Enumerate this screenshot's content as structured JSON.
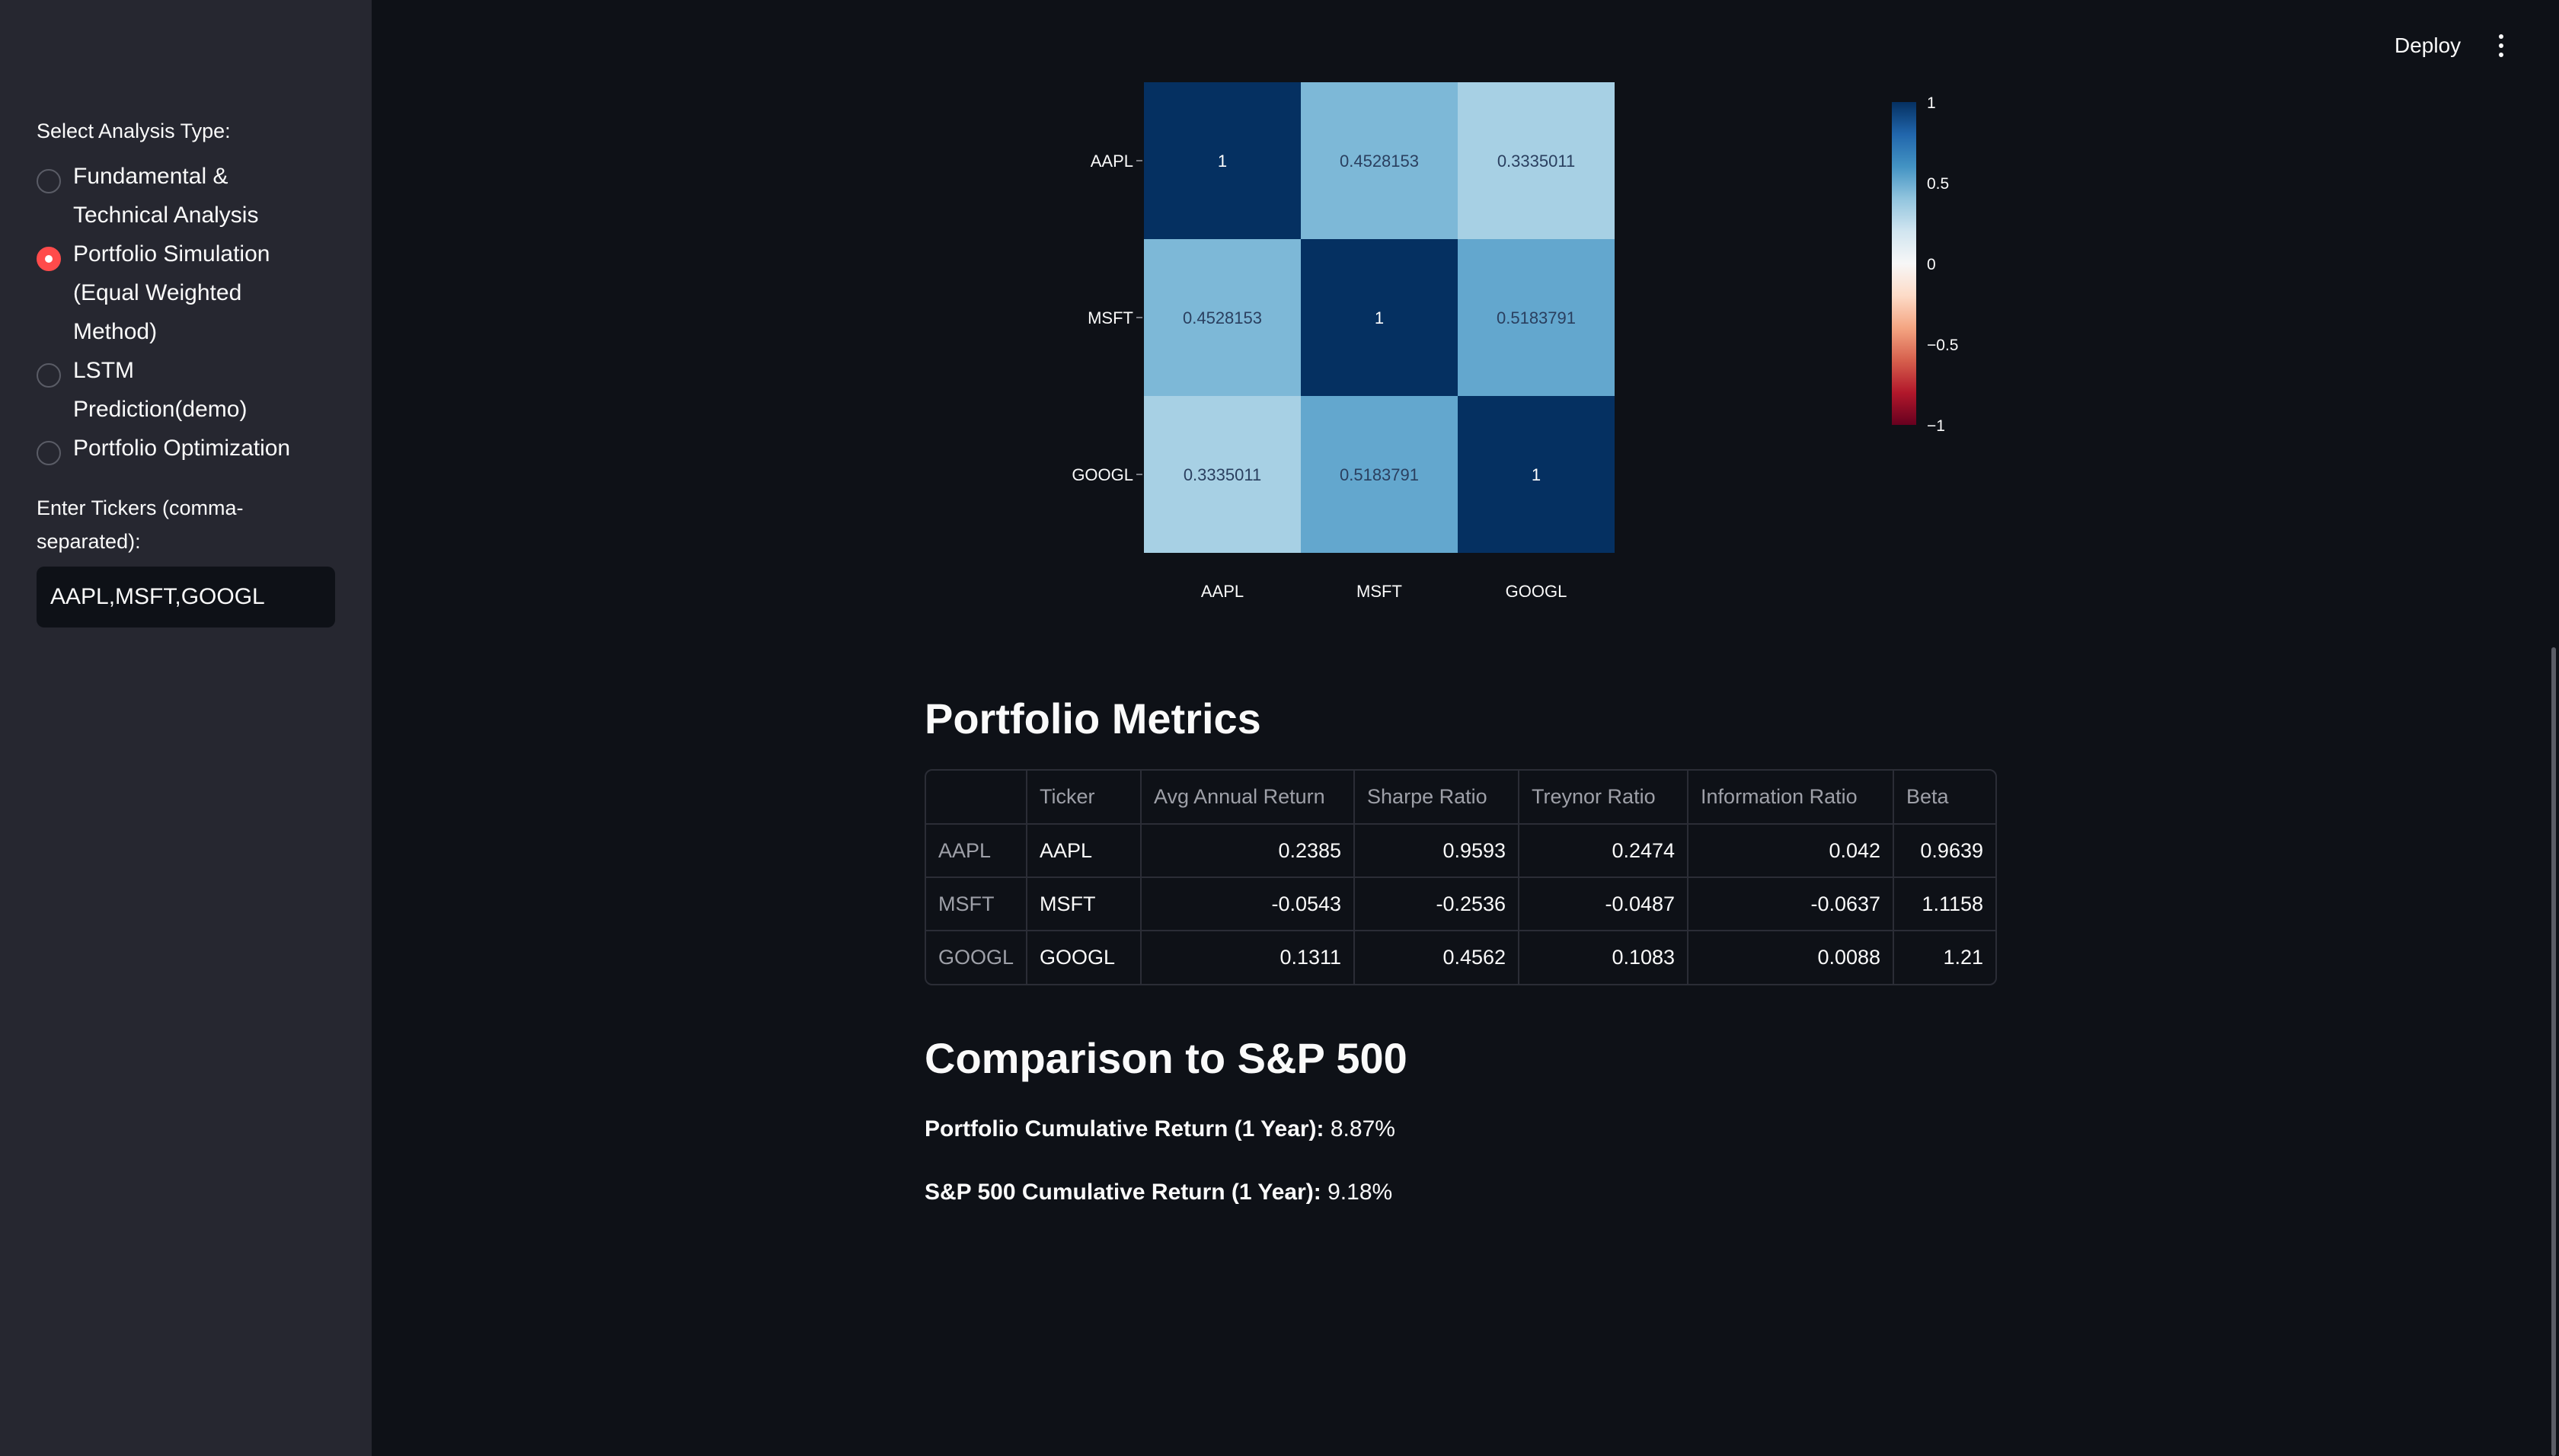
{
  "sidebar": {
    "analysis_label": "Select Analysis Type:",
    "options": [
      {
        "line1": "Fundamental &",
        "line2": "Technical Analysis",
        "line3": ""
      },
      {
        "line1": "Portfolio Simulation",
        "line2": "(Equal Weighted",
        "line3": "Method)"
      },
      {
        "line1": "LSTM",
        "line2": "Prediction(demo)",
        "line3": ""
      },
      {
        "line1": "Portfolio Optimization",
        "line2": "",
        "line3": ""
      }
    ],
    "selected_option": 1,
    "tickers_label_line1": "Enter Tickers (comma-",
    "tickers_label_line2": "separated):",
    "tickers_value": "AAPL,MSFT,GOOGL"
  },
  "header": {
    "deploy_label": "Deploy"
  },
  "chart_data": {
    "type": "heatmap",
    "x_labels": [
      "AAPL",
      "MSFT",
      "GOOGL"
    ],
    "y_labels": [
      "AAPL",
      "MSFT",
      "GOOGL"
    ],
    "values": [
      [
        1,
        0.4528153,
        0.3335011
      ],
      [
        0.4528153,
        1,
        0.5183791
      ],
      [
        0.3335011,
        0.5183791,
        1
      ]
    ],
    "value_labels": [
      [
        "1",
        "0.4528153",
        "0.3335011"
      ],
      [
        "0.4528153",
        "1",
        "0.5183791"
      ],
      [
        "0.3335011",
        "0.5183791",
        "1"
      ]
    ],
    "colorscale": "RdBu",
    "zlim": [
      -1,
      1
    ],
    "colorbar_ticks": [
      1,
      0.5,
      0,
      -0.5,
      -1
    ],
    "colorbar_tick_labels": [
      "1",
      "0.5",
      "0",
      "−0.5",
      "−1"
    ]
  },
  "metrics": {
    "title": "Portfolio Metrics",
    "columns": [
      "",
      "Ticker",
      "Avg Annual Return",
      "Sharpe Ratio",
      "Treynor Ratio",
      "Information Ratio",
      "Beta"
    ],
    "rows": [
      [
        "AAPL",
        "AAPL",
        "0.2385",
        "0.9593",
        "0.2474",
        "0.042",
        "0.9639"
      ],
      [
        "MSFT",
        "MSFT",
        "-0.0543",
        "-0.2536",
        "-0.0487",
        "-0.0637",
        "1.1158"
      ],
      [
        "GOOGL",
        "GOOGL",
        "0.1311",
        "0.4562",
        "0.1083",
        "0.0088",
        "1.21"
      ]
    ]
  },
  "comparison": {
    "title": "Comparison to S&P 500",
    "portfolio_label": "Portfolio Cumulative Return (1 Year):",
    "portfolio_value": "8.87%",
    "sp500_label": "S&P 500 Cumulative Return (1 Year):",
    "sp500_value": "9.18%"
  }
}
